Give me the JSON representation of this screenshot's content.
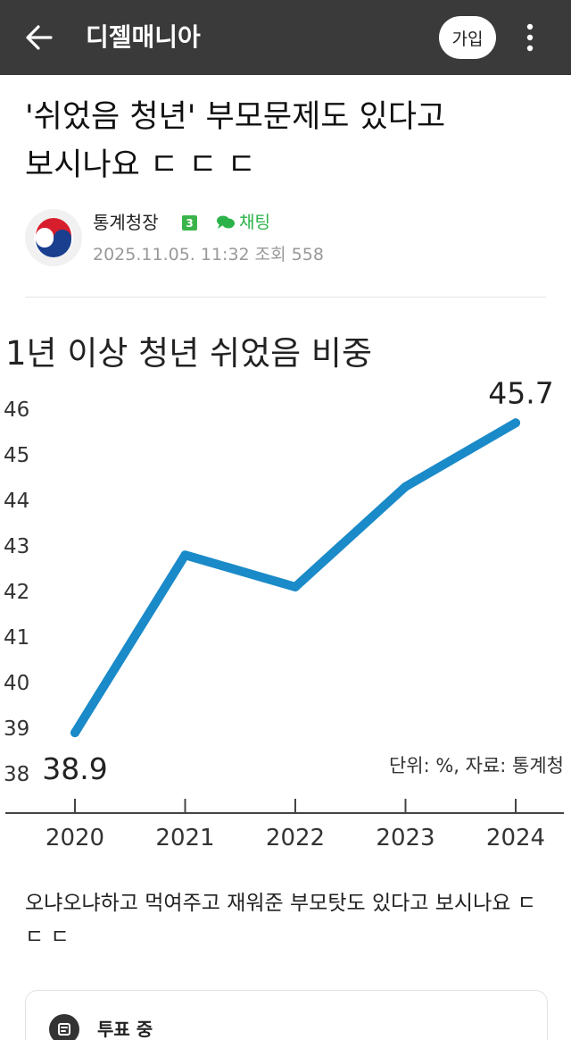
{
  "header": {
    "back_icon": "arrow-left-icon",
    "title": "디젤매니아",
    "join_label": "가입",
    "more_icon": "more-vertical-icon"
  },
  "post": {
    "title": "'쉬었음 청년' 부모문제도 있다고 보시나요 ㄷ ㄷ ㄷ",
    "author": "통계청장",
    "level": "3",
    "chat_label": "채팅",
    "date": "2025.11.05. 11:32",
    "views_label": "조회 558",
    "body": "오냐오냐하고 먹여주고 재워준 부모탓도 있다고 보시나요 ㄷ ㄷ ㄷ"
  },
  "chart_data": {
    "type": "line",
    "title": "1년 이상 청년 쉬었음 비중",
    "source_note": "단위: %, 자료: 통계청",
    "x": [
      "2020",
      "2021",
      "2022",
      "2023",
      "2024"
    ],
    "series": [
      {
        "values": [
          38.9,
          42.8,
          42.1,
          44.3,
          45.7
        ]
      }
    ],
    "data_labels": [
      "38.9",
      "45.7"
    ],
    "y_ticks": [
      "38",
      "39",
      "40",
      "41",
      "42",
      "43",
      "44",
      "45",
      "46"
    ],
    "ylim": [
      38,
      46
    ],
    "grid": false,
    "line_color": "#1a8ac8"
  },
  "vote": {
    "label": "투표 중",
    "icon": "vote-icon"
  }
}
